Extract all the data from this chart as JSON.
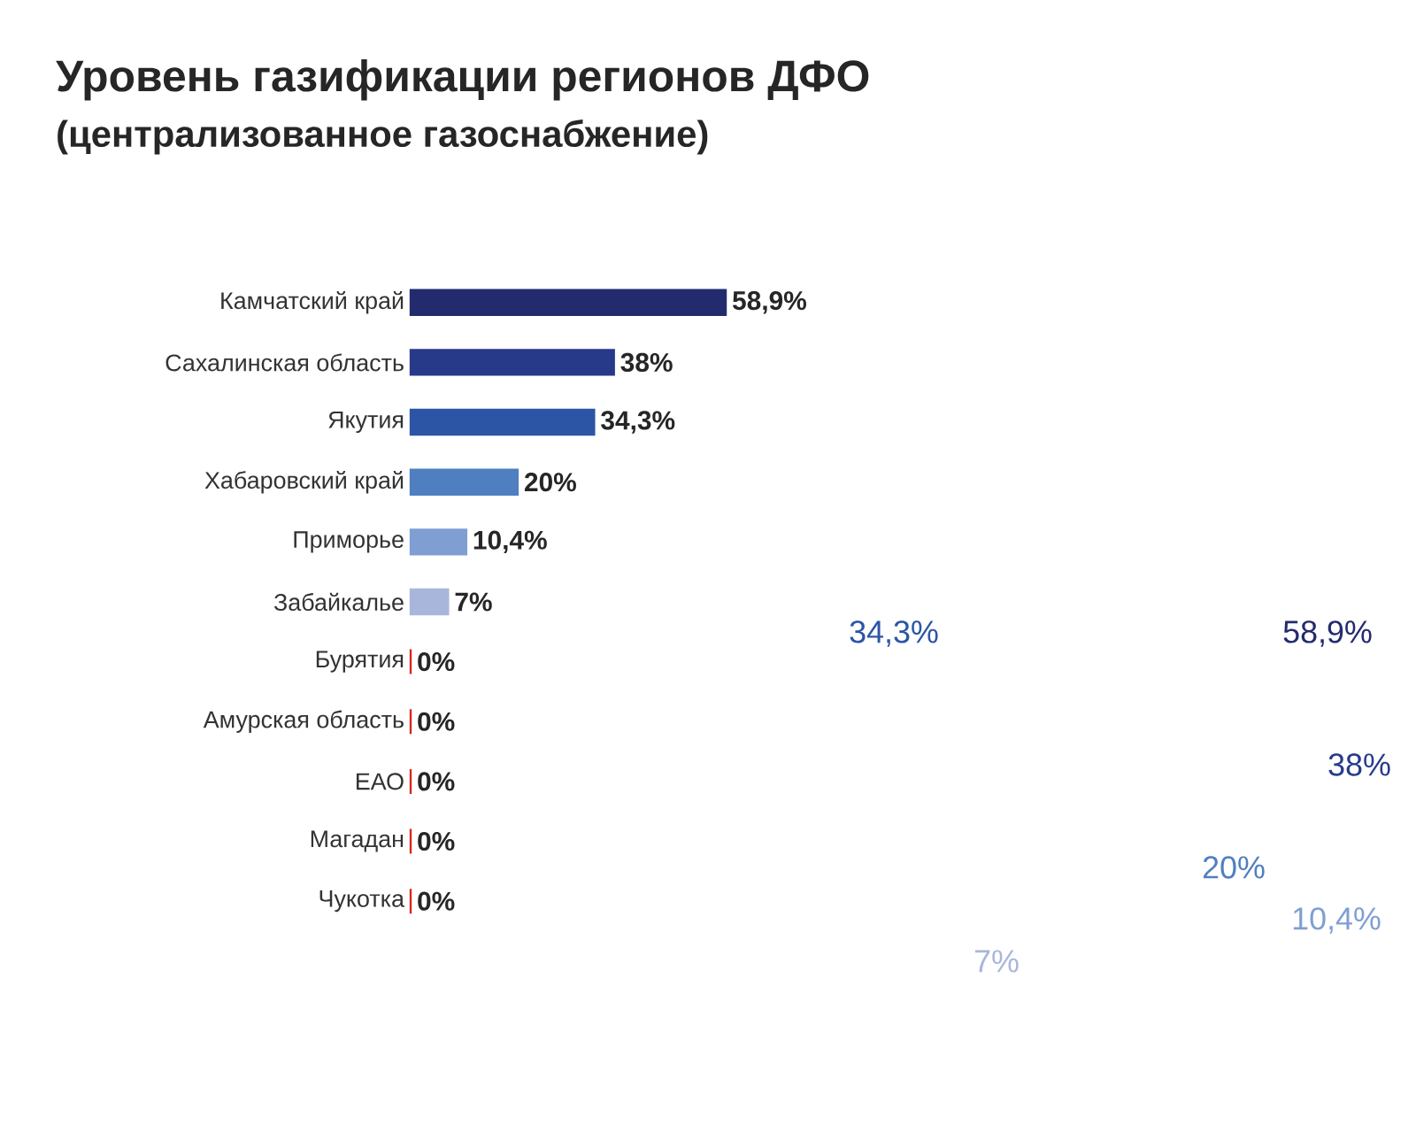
{
  "chart_data": {
    "type": "bar",
    "orientation": "horizontal",
    "title": "Уровень газификации регионов ДФО",
    "subtitle": "(централизованное газоснабжение)",
    "categories": [
      "Камчатский край",
      "Сахалинская область",
      "Якутия",
      "Хабаровский край",
      "Приморье",
      "Забайкалье",
      "Бурятия",
      "Амурская область",
      "ЕАО",
      "Магадан",
      "Чукотка"
    ],
    "values": [
      58.9,
      38,
      34.3,
      20,
      10.4,
      7,
      0,
      0,
      0,
      0,
      0
    ],
    "colors": [
      "#232b6e",
      "#273a8a",
      "#2c55a5",
      "#4f7fc0",
      "#7f9fd3",
      "#a9b6dc",
      "#d9261c",
      "#d9261c",
      "#d9261c",
      "#d9261c",
      "#d9261c"
    ],
    "value_labels": [
      "58,9%",
      "38%",
      "34,3%",
      "20%",
      "10,4%",
      "7%",
      "0%",
      "0%",
      "0%",
      "0%",
      "0%"
    ],
    "annotations": [
      "34,3%",
      "58,9%",
      "38%",
      "20%",
      "10,4%",
      "7%"
    ]
  }
}
